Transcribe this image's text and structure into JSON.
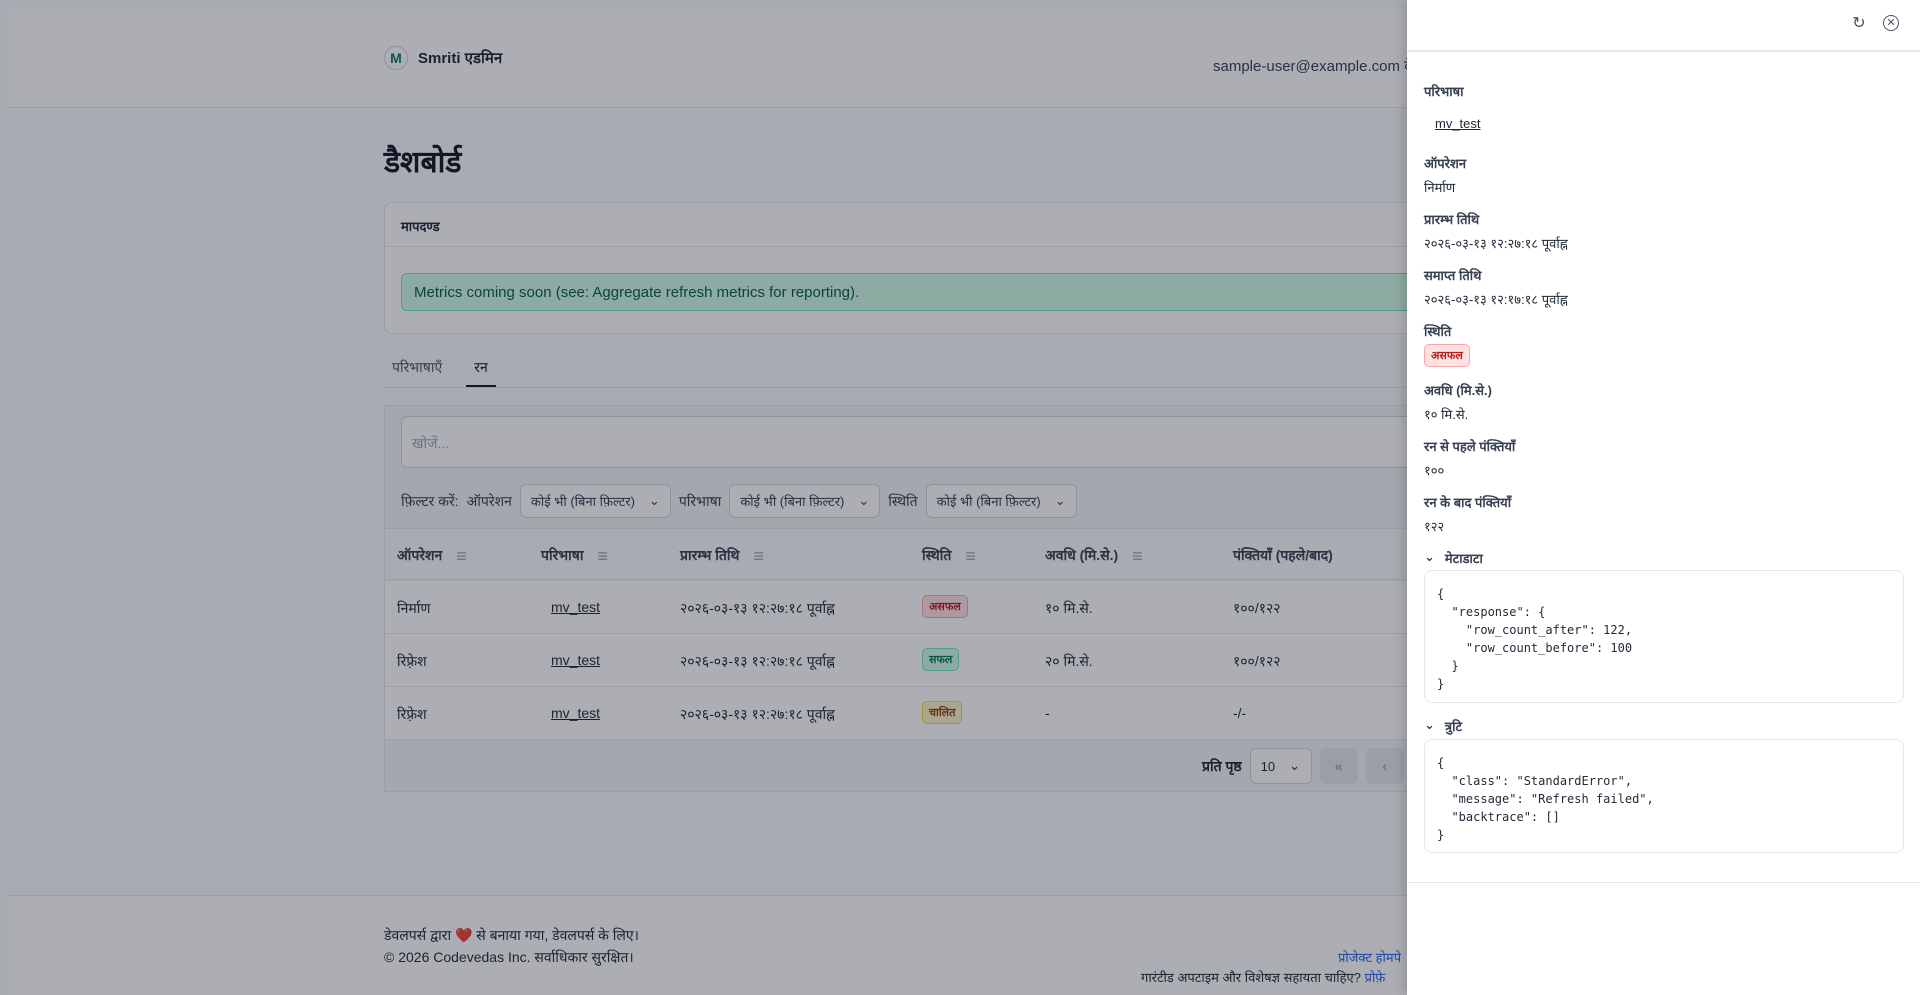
{
  "header": {
    "brand": "Smriti एडमिन",
    "logo": "M",
    "user_email": "sample-user@example.com के"
  },
  "page": {
    "title": "डैशबोर्ड"
  },
  "metrics": {
    "title": "मापदण्ड",
    "alert": "Metrics coming soon (see: Aggregate refresh metrics for reporting)."
  },
  "tabs": [
    {
      "label": "परिभाषाएँ",
      "active": false
    },
    {
      "label": "रन",
      "active": true
    }
  ],
  "search": {
    "placeholder": "खोजें..."
  },
  "filters": {
    "label": "फ़िल्टर करें:",
    "operation_label": "ऑपरेशन",
    "operation_value": "कोई भी (बिना फ़िल्टर)",
    "definition_label": "परिभाषा",
    "definition_value": "कोई भी (बिना फ़िल्टर)",
    "status_label": "स्थिति",
    "status_value": "कोई भी (बिना फ़िल्टर)"
  },
  "table": {
    "columns": [
      "ऑपरेशन",
      "परिभाषा",
      "प्रारम्भ तिथि",
      "स्थिति",
      "अवधि (मि.से.)",
      "पंक्तियाँ (पहले/बाद)"
    ],
    "rows": [
      {
        "operation": "निर्माण",
        "definition": "mv_test",
        "start": "२०२६-०३-१३ १२:२७:१८ पूर्वाह्न",
        "status": "असफल",
        "duration": "१० मि.से.",
        "rows": "१००/१२२"
      },
      {
        "operation": "रिफ़्रेश",
        "definition": "mv_test",
        "start": "२०२६-०३-१३ १२:२७:१८ पूर्वाह्न",
        "status": "सफल",
        "duration": "२० मि.से.",
        "rows": "१००/१२२"
      },
      {
        "operation": "रिफ़्रेश",
        "definition": "mv_test",
        "start": "२०२६-०३-१३ १२:२७:१८ पूर्वाह्न",
        "status": "चालित",
        "duration": "-",
        "rows": "-/-"
      }
    ]
  },
  "pagination": {
    "per_page_label": "प्रति पृष्ठ",
    "per_page": "10",
    "first": "«",
    "prev": "‹"
  },
  "footer": {
    "made_by": "डेवलपर्स द्वारा ❤️ से बनाया गया, डेवलपर्स के लिए।",
    "copyright": "© 2026 Codevedas Inc. सर्वाधिकार सुरक्षित।",
    "homepage": "प्रोजेक्ट होमपे",
    "support": "गारंटीड अपटाइम और विशेषज्ञ सहायता चाहिए?",
    "support_link": "प्रोफ़े"
  },
  "drawer": {
    "definition_label": "परिभाषा",
    "definition": "mv_test",
    "operation_label": "ऑपरेशन",
    "operation": "निर्माण",
    "start_label": "प्रारम्भ तिथि",
    "start": "२०२६-०३-१३ १२:२७:१८ पूर्वाह्न",
    "end_label": "समाप्त तिथि",
    "end": "२०२६-०३-१३ १२:१७:१८ पूर्वाह्न",
    "status_label": "स्थिति",
    "status": "असफल",
    "duration_label": "अवधि (मि.से.)",
    "duration": "१० मि.से.",
    "rows_before_label": "रन से पहले पंक्तियाँ",
    "rows_before": "१००",
    "rows_after_label": "रन के बाद पंक्तियाँ",
    "rows_after": "१२२",
    "metadata_label": "मेटाडाटा",
    "metadata": "{\n  \"response\": {\n    \"row_count_after\": 122,\n    \"row_count_before\": 100\n  }\n}",
    "error_label": "त्रुटि",
    "error": "{\n  \"class\": \"StandardError\",\n  \"message\": \"Refresh failed\",\n  \"backtrace\": []\n}"
  },
  "colors": {
    "fail": "#b91c1c",
    "success": "#047857",
    "running": "#92400e",
    "alert_bg": "#d1fae5"
  }
}
